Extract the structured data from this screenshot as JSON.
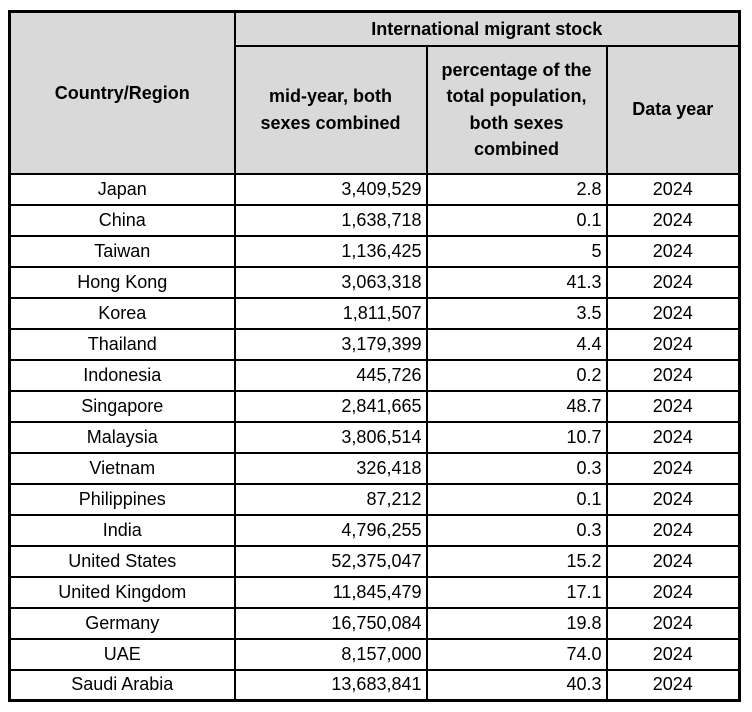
{
  "colors": {
    "header_bg": "#d9d9d9",
    "border": "#000000",
    "row_bg": "#ffffff",
    "text": "#000000"
  },
  "table": {
    "header": {
      "country_region": "Country/Region",
      "group": "International migrant stock",
      "col_midyear": "mid-year, both sexes combined",
      "col_percentage": "percentage of the total population, both sexes combined",
      "col_datayear": "Data year"
    },
    "rows": [
      {
        "country": "Japan",
        "stock": "3,409,529",
        "pct": "2.8",
        "year": "2024"
      },
      {
        "country": "China",
        "stock": "1,638,718",
        "pct": "0.1",
        "year": "2024"
      },
      {
        "country": "Taiwan",
        "stock": "1,136,425",
        "pct": "5",
        "year": "2024"
      },
      {
        "country": "Hong Kong",
        "stock": "3,063,318",
        "pct": "41.3",
        "year": "2024"
      },
      {
        "country": "Korea",
        "stock": "1,811,507",
        "pct": "3.5",
        "year": "2024"
      },
      {
        "country": "Thailand",
        "stock": "3,179,399",
        "pct": "4.4",
        "year": "2024"
      },
      {
        "country": "Indonesia",
        "stock": "445,726",
        "pct": "0.2",
        "year": "2024"
      },
      {
        "country": "Singapore",
        "stock": "2,841,665",
        "pct": "48.7",
        "year": "2024"
      },
      {
        "country": "Malaysia",
        "stock": "3,806,514",
        "pct": "10.7",
        "year": "2024"
      },
      {
        "country": "Vietnam",
        "stock": "326,418",
        "pct": "0.3",
        "year": "2024"
      },
      {
        "country": "Philippines",
        "stock": "87,212",
        "pct": "0.1",
        "year": "2024"
      },
      {
        "country": "India",
        "stock": "4,796,255",
        "pct": "0.3",
        "year": "2024"
      },
      {
        "country": "United States",
        "stock": "52,375,047",
        "pct": "15.2",
        "year": "2024"
      },
      {
        "country": "United Kingdom",
        "stock": "11,845,479",
        "pct": "17.1",
        "year": "2024"
      },
      {
        "country": "Germany",
        "stock": "16,750,084",
        "pct": "19.8",
        "year": "2024"
      },
      {
        "country": "UAE",
        "stock": "8,157,000",
        "pct": "74.0",
        "year": "2024"
      },
      {
        "country": "Saudi Arabia",
        "stock": "13,683,841",
        "pct": "40.3",
        "year": "2024"
      }
    ]
  }
}
